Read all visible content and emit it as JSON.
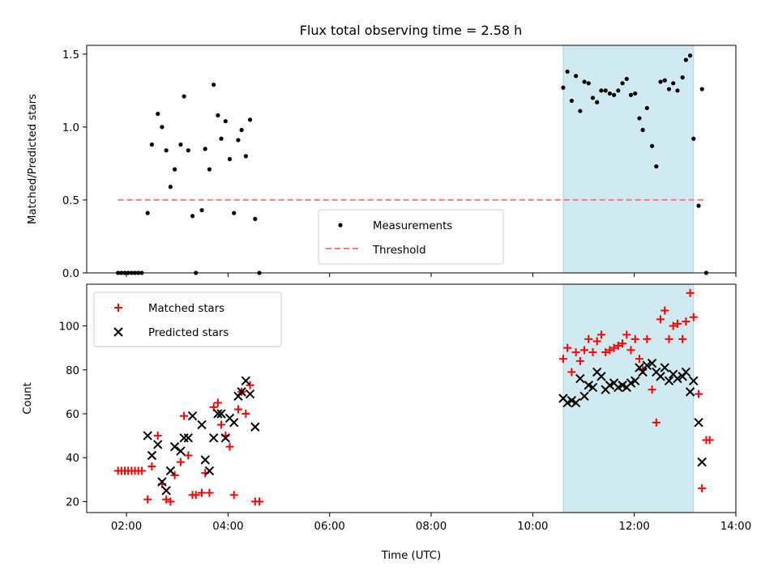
{
  "chart_data": [
    {
      "type": "scatter",
      "title": "Flux total observing time = 2.58 h",
      "xlabel": "",
      "ylabel": "Matched/Predicted stars",
      "ylim": [
        0,
        1.56
      ],
      "yticks": [
        "0.0",
        "0.5",
        "1.0",
        "1.5"
      ],
      "ytick_values": [
        0,
        0.5,
        1.0,
        1.5
      ],
      "xlim": [
        "01:13",
        "14:00"
      ],
      "legend": {
        "placement": "lower-center",
        "entries": [
          "Measurements",
          "Threshold"
        ]
      },
      "shaded_region": {
        "x": [
          "10:36",
          "13:10"
        ],
        "color": "#d1e9f1"
      },
      "threshold": {
        "name": "Threshold",
        "value": 0.5,
        "x": [
          "01:50",
          "13:25"
        ],
        "color": "#f08080"
      },
      "series": [
        {
          "name": "Measurements",
          "color": "#000000",
          "points": [
            [
              "01:50",
              0
            ],
            [
              "01:54",
              0
            ],
            [
              "01:58",
              0
            ],
            [
              "02:02",
              0
            ],
            [
              "02:06",
              0
            ],
            [
              "02:10",
              0
            ],
            [
              "02:14",
              0
            ],
            [
              "02:18",
              0
            ],
            [
              "02:25",
              0.41
            ],
            [
              "02:30",
              0.88
            ],
            [
              "02:37",
              1.09
            ],
            [
              "02:42",
              1.0
            ],
            [
              "02:47",
              0.84
            ],
            [
              "02:52",
              0.59
            ],
            [
              "02:57",
              0.71
            ],
            [
              "03:04",
              0.88
            ],
            [
              "03:08",
              1.21
            ],
            [
              "03:13",
              0.84
            ],
            [
              "03:18",
              0.39
            ],
            [
              "03:22",
              0.0
            ],
            [
              "03:29",
              0.43
            ],
            [
              "03:33",
              0.85
            ],
            [
              "03:38",
              0.71
            ],
            [
              "03:43",
              1.29
            ],
            [
              "03:48",
              1.08
            ],
            [
              "03:52",
              0.92
            ],
            [
              "03:57",
              1.04
            ],
            [
              "04:02",
              0.78
            ],
            [
              "04:07",
              0.41
            ],
            [
              "04:12",
              0.91
            ],
            [
              "04:16",
              0.98
            ],
            [
              "04:21",
              0.8
            ],
            [
              "04:26",
              1.05
            ],
            [
              "04:32",
              0.37
            ],
            [
              "04:37",
              0.0
            ],
            [
              "10:36",
              1.27
            ],
            [
              "10:41",
              1.38
            ],
            [
              "10:46",
              1.18
            ],
            [
              "10:51",
              1.35
            ],
            [
              "10:56",
              1.11
            ],
            [
              "11:01",
              1.31
            ],
            [
              "11:06",
              1.3
            ],
            [
              "11:11",
              1.2
            ],
            [
              "11:16",
              1.17
            ],
            [
              "11:21",
              1.25
            ],
            [
              "11:26",
              1.25
            ],
            [
              "11:31",
              1.23
            ],
            [
              "11:36",
              1.22
            ],
            [
              "11:41",
              1.25
            ],
            [
              "11:46",
              1.3
            ],
            [
              "11:51",
              1.33
            ],
            [
              "11:56",
              1.22
            ],
            [
              "12:01",
              1.23
            ],
            [
              "12:06",
              1.06
            ],
            [
              "12:10",
              0.98
            ],
            [
              "12:15",
              1.13
            ],
            [
              "12:21",
              0.87
            ],
            [
              "12:26",
              0.73
            ],
            [
              "12:31",
              1.31
            ],
            [
              "12:36",
              1.32
            ],
            [
              "12:41",
              1.26
            ],
            [
              "12:46",
              1.3
            ],
            [
              "12:51",
              1.25
            ],
            [
              "12:57",
              1.34
            ],
            [
              "13:01",
              1.46
            ],
            [
              "13:06",
              1.49
            ],
            [
              "13:10",
              0.92
            ],
            [
              "13:16",
              0.46
            ],
            [
              "13:20",
              1.26
            ],
            [
              "13:25",
              0.0
            ]
          ]
        }
      ]
    },
    {
      "type": "scatter",
      "title": "",
      "xlabel": "Time (UTC)",
      "ylabel": "Count",
      "ylim": [
        15,
        119
      ],
      "yticks": [
        "20",
        "40",
        "60",
        "80",
        "100"
      ],
      "ytick_values": [
        20,
        40,
        60,
        80,
        100
      ],
      "xticks": [
        "02:00",
        "04:00",
        "06:00",
        "08:00",
        "10:00",
        "12:00",
        "14:00"
      ],
      "xlim": [
        "01:13",
        "14:00"
      ],
      "legend": {
        "placement": "top-left",
        "entries": [
          "Matched stars",
          "Predicted stars"
        ]
      },
      "shaded_region": {
        "x": [
          "10:36",
          "13:10"
        ],
        "color": "#d1e9f1"
      },
      "series": [
        {
          "name": "Matched stars",
          "marker": "plus",
          "color": "#ff0000",
          "points": [
            [
              "01:50",
              34
            ],
            [
              "01:54",
              34
            ],
            [
              "01:58",
              34
            ],
            [
              "02:02",
              34
            ],
            [
              "02:06",
              34
            ],
            [
              "02:10",
              34
            ],
            [
              "02:14",
              34
            ],
            [
              "02:18",
              34
            ],
            [
              "02:25",
              21
            ],
            [
              "02:30",
              36
            ],
            [
              "02:37",
              50
            ],
            [
              "02:42",
              28
            ],
            [
              "02:47",
              21
            ],
            [
              "02:52",
              20
            ],
            [
              "02:57",
              32
            ],
            [
              "03:04",
              38
            ],
            [
              "03:08",
              59
            ],
            [
              "03:13",
              41
            ],
            [
              "03:18",
              23
            ],
            [
              "03:22",
              23
            ],
            [
              "03:29",
              24
            ],
            [
              "03:33",
              33
            ],
            [
              "03:38",
              24
            ],
            [
              "03:43",
              63
            ],
            [
              "03:48",
              65
            ],
            [
              "03:52",
              55
            ],
            [
              "03:57",
              50
            ],
            [
              "04:02",
              45
            ],
            [
              "04:07",
              23
            ],
            [
              "04:12",
              62
            ],
            [
              "04:16",
              70
            ],
            [
              "04:21",
              60
            ],
            [
              "04:26",
              73
            ],
            [
              "04:32",
              20
            ],
            [
              "04:37",
              20
            ],
            [
              "10:36",
              85
            ],
            [
              "10:41",
              90
            ],
            [
              "10:46",
              79
            ],
            [
              "10:51",
              88
            ],
            [
              "10:56",
              84
            ],
            [
              "11:01",
              89
            ],
            [
              "11:06",
              94
            ],
            [
              "11:11",
              88
            ],
            [
              "11:16",
              93
            ],
            [
              "11:21",
              96
            ],
            [
              "11:26",
              88
            ],
            [
              "11:31",
              89
            ],
            [
              "11:36",
              90
            ],
            [
              "11:41",
              91
            ],
            [
              "11:46",
              92
            ],
            [
              "11:51",
              96
            ],
            [
              "11:56",
              89
            ],
            [
              "12:01",
              94
            ],
            [
              "12:06",
              85
            ],
            [
              "12:10",
              80
            ],
            [
              "12:15",
              94
            ],
            [
              "12:21",
              71
            ],
            [
              "12:26",
              56
            ],
            [
              "12:31",
              103
            ],
            [
              "12:36",
              107
            ],
            [
              "12:41",
              94
            ],
            [
              "12:46",
              100
            ],
            [
              "12:51",
              101
            ],
            [
              "12:57",
              94
            ],
            [
              "13:01",
              102
            ],
            [
              "13:06",
              115
            ],
            [
              "13:10",
              104
            ],
            [
              "13:16",
              69
            ],
            [
              "13:20",
              26
            ],
            [
              "13:25",
              48
            ],
            [
              "13:29",
              48
            ]
          ]
        },
        {
          "name": "Predicted stars",
          "marker": "x",
          "color": "#000000",
          "points": [
            [
              "02:25",
              50
            ],
            [
              "02:30",
              41
            ],
            [
              "02:37",
              46
            ],
            [
              "02:42",
              29
            ],
            [
              "02:47",
              25
            ],
            [
              "02:52",
              34
            ],
            [
              "02:57",
              45
            ],
            [
              "03:04",
              43
            ],
            [
              "03:08",
              49
            ],
            [
              "03:13",
              49
            ],
            [
              "03:18",
              59
            ],
            [
              "03:29",
              55
            ],
            [
              "03:33",
              39
            ],
            [
              "03:38",
              34
            ],
            [
              "03:43",
              49
            ],
            [
              "03:48",
              60
            ],
            [
              "03:52",
              60
            ],
            [
              "03:57",
              49
            ],
            [
              "04:02",
              58
            ],
            [
              "04:07",
              56
            ],
            [
              "04:12",
              68
            ],
            [
              "04:16",
              70
            ],
            [
              "04:21",
              75
            ],
            [
              "04:26",
              69
            ],
            [
              "04:32",
              54
            ],
            [
              "10:36",
              67
            ],
            [
              "10:41",
              65
            ],
            [
              "10:46",
              66
            ],
            [
              "10:51",
              65
            ],
            [
              "10:56",
              76
            ],
            [
              "11:01",
              68
            ],
            [
              "11:06",
              73
            ],
            [
              "11:11",
              72
            ],
            [
              "11:16",
              79
            ],
            [
              "11:21",
              77
            ],
            [
              "11:26",
              71
            ],
            [
              "11:31",
              73
            ],
            [
              "11:36",
              74
            ],
            [
              "11:41",
              72
            ],
            [
              "11:46",
              73
            ],
            [
              "11:51",
              72
            ],
            [
              "11:56",
              74
            ],
            [
              "12:01",
              75
            ],
            [
              "12:06",
              81
            ],
            [
              "12:10",
              79
            ],
            [
              "12:15",
              82
            ],
            [
              "12:21",
              83
            ],
            [
              "12:26",
              79
            ],
            [
              "12:31",
              77
            ],
            [
              "12:36",
              81
            ],
            [
              "12:41",
              75
            ],
            [
              "12:46",
              78
            ],
            [
              "12:51",
              76
            ],
            [
              "12:57",
              77
            ],
            [
              "13:01",
              79
            ],
            [
              "13:06",
              70
            ],
            [
              "13:10",
              75
            ],
            [
              "13:16",
              56
            ],
            [
              "13:20",
              38
            ]
          ]
        }
      ]
    }
  ]
}
